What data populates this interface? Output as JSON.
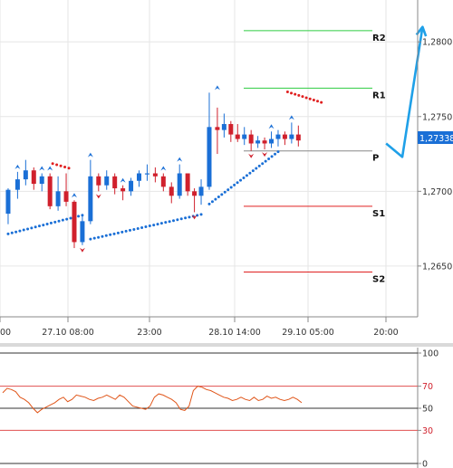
{
  "chart_data": [
    {
      "type": "candlestick",
      "y_axis": {
        "ticks": [
          "1,2800",
          "1,2750",
          "1,2700",
          "1,2650"
        ],
        "tick_values": [
          1.28,
          1.275,
          1.27,
          1.265
        ],
        "range": [
          1.2616,
          1.2828
        ],
        "position": "right"
      },
      "x_axis": {
        "ticks": [
          "00",
          "27.10 08:00",
          "23:00",
          "28.10 14:00",
          "29.10 05:00",
          "20:00"
        ]
      },
      "current_price": {
        "label": "1,27338",
        "value": 1.27338
      },
      "pivot_levels": [
        {
          "name": "R2",
          "value": 1.28075,
          "color": "#2ecc40"
        },
        {
          "name": "R1",
          "value": 1.2769,
          "color": "#2ecc40"
        },
        {
          "name": "P",
          "value": 1.2727,
          "color": "#888888"
        },
        {
          "name": "S1",
          "value": 1.269,
          "color": "#e02020"
        },
        {
          "name": "S2",
          "value": 1.2646,
          "color": "#e02020"
        }
      ],
      "forecast_arrow": {
        "color": "#1fa0e8",
        "points": [
          [
            28.3,
            1.2732
          ],
          [
            29.5,
            1.2723
          ],
          [
            31.0,
            1.281
          ]
        ]
      },
      "candles": [
        [
          0.3,
          1.2685,
          1.2701,
          1.2678,
          1.2702,
          "up"
        ],
        [
          1.0,
          1.2701,
          1.2708,
          1.2695,
          1.2713,
          "up"
        ],
        [
          1.6,
          1.2708,
          1.2714,
          1.2704,
          1.2721,
          "up"
        ],
        [
          2.2,
          1.2714,
          1.2705,
          1.2701,
          1.2716,
          "down"
        ],
        [
          2.8,
          1.2705,
          1.271,
          1.27,
          1.2712,
          "up"
        ],
        [
          3.4,
          1.271,
          1.269,
          1.2688,
          1.2712,
          "down"
        ],
        [
          4.0,
          1.269,
          1.27,
          1.2687,
          1.271,
          "up"
        ],
        [
          4.6,
          1.27,
          1.2693,
          1.269,
          1.2712,
          "down"
        ],
        [
          5.2,
          1.2693,
          1.2666,
          1.2662,
          1.2694,
          "down"
        ],
        [
          5.8,
          1.2666,
          1.268,
          1.2664,
          1.2684,
          "up"
        ],
        [
          6.4,
          1.268,
          1.271,
          1.2678,
          1.2721,
          "up"
        ],
        [
          7.0,
          1.271,
          1.2704,
          1.27,
          1.2712,
          "down"
        ],
        [
          7.6,
          1.2704,
          1.271,
          1.2701,
          1.2714,
          "up"
        ],
        [
          8.2,
          1.271,
          1.2702,
          1.2698,
          1.2712,
          "down"
        ],
        [
          8.8,
          1.2702,
          1.27,
          1.2694,
          1.2704,
          "down"
        ],
        [
          9.4,
          1.27,
          1.2707,
          1.2697,
          1.2709,
          "up"
        ],
        [
          10.0,
          1.2707,
          1.2712,
          1.2703,
          1.2714,
          "up"
        ],
        [
          10.6,
          1.2712,
          1.2712,
          1.2707,
          1.2718,
          "up"
        ],
        [
          11.2,
          1.2712,
          1.271,
          1.2706,
          1.2716,
          "down"
        ],
        [
          11.8,
          1.271,
          1.2703,
          1.27,
          1.2712,
          "down"
        ],
        [
          12.4,
          1.2703,
          1.2697,
          1.2692,
          1.2706,
          "down"
        ],
        [
          13.0,
          1.2697,
          1.2712,
          1.2695,
          1.2718,
          "up"
        ],
        [
          13.6,
          1.2712,
          1.27,
          1.2697,
          1.2712,
          "down"
        ],
        [
          14.1,
          1.27,
          1.2697,
          1.2686,
          1.2702,
          "down"
        ],
        [
          14.6,
          1.2697,
          1.2703,
          1.2691,
          1.2708,
          "up"
        ],
        [
          15.2,
          1.2703,
          1.2743,
          1.2701,
          1.2766,
          "up"
        ],
        [
          15.8,
          1.2743,
          1.2741,
          1.2725,
          1.2756,
          "down"
        ],
        [
          16.3,
          1.2741,
          1.2745,
          1.2736,
          1.2752,
          "up"
        ],
        [
          16.8,
          1.2745,
          1.2738,
          1.2733,
          1.2747,
          "down"
        ],
        [
          17.3,
          1.2738,
          1.2735,
          1.2733,
          1.2745,
          "down"
        ],
        [
          17.8,
          1.2735,
          1.2738,
          1.2731,
          1.2743,
          "up"
        ],
        [
          18.3,
          1.2738,
          1.2732,
          1.2727,
          1.2741,
          "down"
        ],
        [
          18.8,
          1.2732,
          1.2734,
          1.2729,
          1.2737,
          "up"
        ],
        [
          19.3,
          1.2734,
          1.2732,
          1.2728,
          1.2736,
          "down"
        ],
        [
          19.8,
          1.2732,
          1.2735,
          1.2729,
          1.274,
          "up"
        ],
        [
          20.3,
          1.2735,
          1.2738,
          1.273,
          1.2741,
          "up"
        ],
        [
          20.8,
          1.2738,
          1.2735,
          1.2731,
          1.274,
          "down"
        ],
        [
          21.3,
          1.2735,
          1.2738,
          1.2732,
          1.2746,
          "up"
        ],
        [
          21.8,
          1.2738,
          1.2734,
          1.273,
          1.2744,
          "down"
        ]
      ],
      "psar_dots": {
        "color_up": "#1a6fd6",
        "color_down": "#e02020",
        "up_segments": [
          [
            [
              0.3,
              1.26715
            ],
            [
              5.8,
              1.2684
            ]
          ],
          [
            [
              6.4,
              1.2668
            ],
            [
              14.6,
              1.26845
            ]
          ],
          [
            [
              15.2,
              1.26915
            ],
            [
              20.3,
              1.27265
            ]
          ]
        ],
        "down_segments": [
          [
            [
              3.6,
              1.27185
            ],
            [
              4.8,
              1.27155
            ]
          ],
          [
            [
              21.0,
              1.27665
            ],
            [
              23.5,
              1.27595
            ]
          ]
        ]
      },
      "fractal_marks": {
        "up": [
          [
            1.0,
            1.2713
          ],
          [
            2.8,
            1.2712
          ],
          [
            3.4,
            1.2712
          ],
          [
            5.2,
            1.2694
          ],
          [
            6.4,
            1.2721
          ],
          [
            8.8,
            1.2704
          ],
          [
            11.8,
            1.2712
          ],
          [
            13.0,
            1.2718
          ],
          [
            15.8,
            1.2766
          ],
          [
            19.8,
            1.274
          ],
          [
            21.3,
            1.2746
          ]
        ],
        "down": [
          [
            5.8,
            1.2664
          ],
          [
            7.0,
            1.27
          ],
          [
            14.1,
            1.2686
          ],
          [
            18.3,
            1.2727
          ],
          [
            19.3,
            1.2728
          ]
        ]
      }
    },
    {
      "type": "line",
      "indicator": "oscillator",
      "y_axis": {
        "ticks": [
          "100",
          "70",
          "50",
          "30",
          "0"
        ],
        "tick_values": [
          100,
          70,
          50,
          30,
          0
        ],
        "range": [
          0,
          100
        ]
      },
      "levels": [
        {
          "value": 70,
          "color": "#e05050"
        },
        {
          "value": 50,
          "color": "#333333"
        },
        {
          "value": 30,
          "color": "#e05050"
        }
      ],
      "series": [
        {
          "color": "#e0561a",
          "values": [
            64,
            68,
            67,
            65,
            60,
            58,
            55,
            50,
            46,
            49,
            51,
            53,
            55,
            58,
            60,
            56,
            58,
            62,
            61,
            60,
            58,
            57,
            59,
            60,
            62,
            60,
            58,
            62,
            60,
            56,
            52,
            51,
            50,
            49,
            52,
            60,
            63,
            62,
            60,
            58,
            55,
            49,
            48,
            52,
            66,
            70,
            69,
            67,
            66,
            64,
            62,
            60,
            59,
            57,
            58,
            60,
            58,
            57,
            60,
            57,
            58,
            61,
            59,
            60,
            58,
            57,
            58,
            60,
            58,
            55
          ]
        }
      ]
    }
  ]
}
